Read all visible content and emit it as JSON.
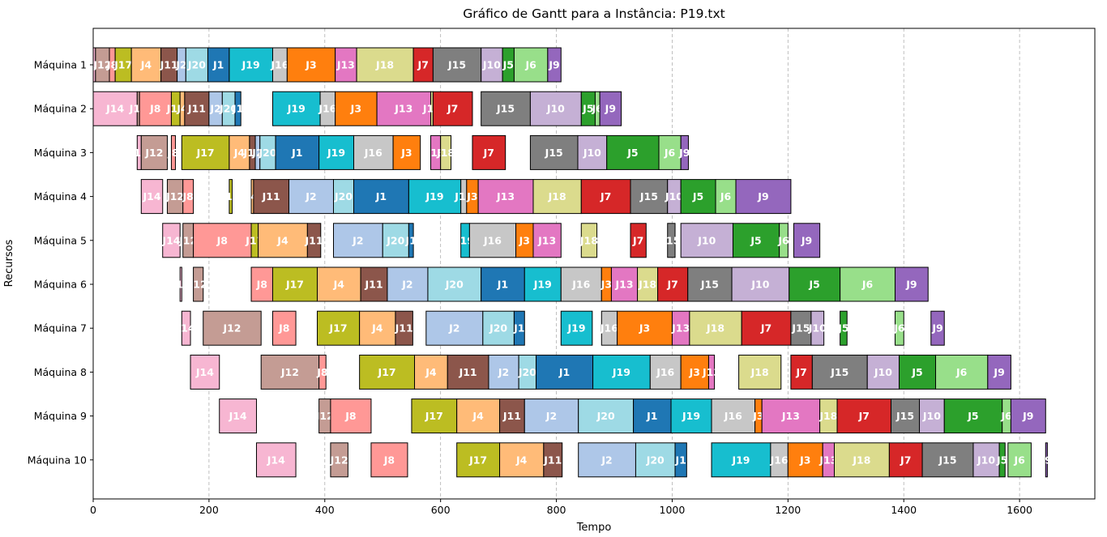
{
  "chart_data": {
    "type": "gantt",
    "title": "Gráfico de Gantt para a Instância: P19.txt",
    "xlabel": "Tempo",
    "ylabel": "Recursos",
    "xlim": [
      0,
      1730
    ],
    "xticks": [
      0,
      200,
      400,
      600,
      800,
      1000,
      1200,
      1400,
      1600
    ],
    "grid": "vertical-dashed",
    "machines": [
      "Máquina 1",
      "Máquina 2",
      "Máquina 3",
      "Máquina 4",
      "Máquina 5",
      "Máquina 6",
      "Máquina 7",
      "Máquina 8",
      "Máquina 9",
      "Máquina 10"
    ],
    "job_colors": {
      "J1": "#1f77b4",
      "J2": "#aec7e8",
      "J3": "#ff7f0e",
      "J4": "#ffbb78",
      "J5": "#2ca02c",
      "J6": "#98df8a",
      "J7": "#d62728",
      "J8": "#ff9896",
      "J9": "#9467bd",
      "J10": "#c5b0d5",
      "J11": "#8c564b",
      "J12": "#c49c94",
      "J13": "#e377c2",
      "J14": "#f7b6d2",
      "J15": "#7f7f7f",
      "J16": "#c7c7c7",
      "J17": "#bcbd22",
      "J18": "#dbdb8d",
      "J19": "#17becf",
      "J20": "#9edae5"
    },
    "tasks": [
      [
        "Máquina 1",
        "J14",
        0,
        4
      ],
      [
        "Máquina 1",
        "J12",
        4,
        28
      ],
      [
        "Máquina 1",
        "J8",
        28,
        38
      ],
      [
        "Máquina 1",
        "J17",
        38,
        66
      ],
      [
        "Máquina 1",
        "J4",
        66,
        117
      ],
      [
        "Máquina 1",
        "J11",
        117,
        145
      ],
      [
        "Máquina 1",
        "J2",
        145,
        160
      ],
      [
        "Máquina 1",
        "J20",
        160,
        198
      ],
      [
        "Máquina 1",
        "J1",
        198,
        235
      ],
      [
        "Máquina 1",
        "J19",
        235,
        310
      ],
      [
        "Máquina 1",
        "J16",
        310,
        335
      ],
      [
        "Máquina 1",
        "J3",
        335,
        418
      ],
      [
        "Máquina 1",
        "J13",
        418,
        455
      ],
      [
        "Máquina 1",
        "J18",
        455,
        553
      ],
      [
        "Máquina 1",
        "J7",
        553,
        587
      ],
      [
        "Máquina 1",
        "J15",
        587,
        670
      ],
      [
        "Máquina 1",
        "J10",
        670,
        707
      ],
      [
        "Máquina 1",
        "J5",
        707,
        727
      ],
      [
        "Máquina 1",
        "J6",
        727,
        785
      ],
      [
        "Máquina 1",
        "J9",
        785,
        808
      ],
      [
        "Máquina 2",
        "J14",
        0,
        76
      ],
      [
        "Máquina 2",
        "J12",
        76,
        80
      ],
      [
        "Máquina 2",
        "J8",
        80,
        135
      ],
      [
        "Máquina 2",
        "J17",
        135,
        150
      ],
      [
        "Máquina 2",
        "J4",
        150,
        158
      ],
      [
        "Máquina 2",
        "J11",
        158,
        200
      ],
      [
        "Máquina 2",
        "J2",
        200,
        223
      ],
      [
        "Máquina 2",
        "J20",
        223,
        245
      ],
      [
        "Máquina 2",
        "J1",
        245,
        255
      ],
      [
        "Máquina 2",
        "J19",
        310,
        392
      ],
      [
        "Máquina 2",
        "J16",
        392,
        418
      ],
      [
        "Máquina 2",
        "J3",
        418,
        490
      ],
      [
        "Máquina 2",
        "J13",
        490,
        583
      ],
      [
        "Máquina 2",
        "J18",
        583,
        587
      ],
      [
        "Máquina 2",
        "J7",
        587,
        655
      ],
      [
        "Máquina 2",
        "J15",
        670,
        755
      ],
      [
        "Máquina 2",
        "J10",
        755,
        843
      ],
      [
        "Máquina 2",
        "J5",
        843,
        867
      ],
      [
        "Máquina 2",
        "J6",
        867,
        875
      ],
      [
        "Máquina 2",
        "J9",
        875,
        912
      ],
      [
        "Máquina 3",
        "J14",
        76,
        83
      ],
      [
        "Máquina 3",
        "J12",
        83,
        128
      ],
      [
        "Máquina 3",
        "J8",
        135,
        142
      ],
      [
        "Máquina 3",
        "J17",
        153,
        235
      ],
      [
        "Máquina 3",
        "J4",
        235,
        270
      ],
      [
        "Máquina 3",
        "J11",
        270,
        280
      ],
      [
        "Máquina 3",
        "J2",
        280,
        288
      ],
      [
        "Máquina 3",
        "J20",
        288,
        315
      ],
      [
        "Máquina 3",
        "J1",
        315,
        390
      ],
      [
        "Máquina 3",
        "J19",
        390,
        450
      ],
      [
        "Máquina 3",
        "J16",
        450,
        518
      ],
      [
        "Máquina 3",
        "J3",
        518,
        565
      ],
      [
        "Máquina 3",
        "J13",
        583,
        600
      ],
      [
        "Máquina 3",
        "J18",
        600,
        618
      ],
      [
        "Máquina 3",
        "J7",
        655,
        712
      ],
      [
        "Máquina 3",
        "J15",
        755,
        837
      ],
      [
        "Máquina 3",
        "J10",
        837,
        887
      ],
      [
        "Máquina 3",
        "J5",
        887,
        977
      ],
      [
        "Máquina 3",
        "J6",
        977,
        1015
      ],
      [
        "Máquina 3",
        "J9",
        1015,
        1028
      ],
      [
        "Máquina 4",
        "J14",
        83,
        120
      ],
      [
        "Máquina 4",
        "J12",
        128,
        155
      ],
      [
        "Máquina 4",
        "J8",
        155,
        173
      ],
      [
        "Máquina 4",
        "J17",
        235,
        240
      ],
      [
        "Máquina 4",
        "J4",
        273,
        277
      ],
      [
        "Máquina 4",
        "J11",
        277,
        338
      ],
      [
        "Máquina 4",
        "J2",
        338,
        415
      ],
      [
        "Máquina 4",
        "J20",
        415,
        450
      ],
      [
        "Máquina 4",
        "J1",
        450,
        545
      ],
      [
        "Máquina 4",
        "J19",
        545,
        635
      ],
      [
        "Máquina 4",
        "J16",
        635,
        645
      ],
      [
        "Máquina 4",
        "J3",
        645,
        665
      ],
      [
        "Máquina 4",
        "J13",
        665,
        760
      ],
      [
        "Máquina 4",
        "J18",
        760,
        843
      ],
      [
        "Máquina 4",
        "J7",
        843,
        928
      ],
      [
        "Máquina 4",
        "J15",
        928,
        992
      ],
      [
        "Máquina 4",
        "J10",
        992,
        1015
      ],
      [
        "Máquina 4",
        "J5",
        1015,
        1075
      ],
      [
        "Máquina 4",
        "J6",
        1075,
        1110
      ],
      [
        "Máquina 4",
        "J9",
        1110,
        1205
      ],
      [
        "Máquina 5",
        "J14",
        120,
        150
      ],
      [
        "Máquina 5",
        "J12",
        155,
        173
      ],
      [
        "Máquina 5",
        "J8",
        173,
        273
      ],
      [
        "Máquina 5",
        "J17",
        273,
        285
      ],
      [
        "Máquina 5",
        "J4",
        285,
        370
      ],
      [
        "Máquina 5",
        "J11",
        370,
        393
      ],
      [
        "Máquina 5",
        "J2",
        415,
        500
      ],
      [
        "Máquina 5",
        "J20",
        500,
        545
      ],
      [
        "Máquina 5",
        "J1",
        545,
        553
      ],
      [
        "Máquina 5",
        "J19",
        635,
        650
      ],
      [
        "Máquina 5",
        "J16",
        650,
        730
      ],
      [
        "Máquina 5",
        "J3",
        730,
        760
      ],
      [
        "Máquina 5",
        "J13",
        760,
        808
      ],
      [
        "Máquina 5",
        "J18",
        843,
        870
      ],
      [
        "Máquina 5",
        "J7",
        928,
        955
      ],
      [
        "Máquina 5",
        "J15",
        992,
        1005
      ],
      [
        "Máquina 5",
        "J10",
        1015,
        1105
      ],
      [
        "Máquina 5",
        "J5",
        1105,
        1185
      ],
      [
        "Máquina 5",
        "J6",
        1185,
        1200
      ],
      [
        "Máquina 5",
        "J9",
        1210,
        1255
      ],
      [
        "Máquina 6",
        "J14",
        150,
        153
      ],
      [
        "Máquina 6",
        "J12",
        173,
        190
      ],
      [
        "Máquina 6",
        "J8",
        273,
        310
      ],
      [
        "Máquina 6",
        "J17",
        310,
        387
      ],
      [
        "Máquina 6",
        "J4",
        387,
        462
      ],
      [
        "Máquina 6",
        "J11",
        462,
        508
      ],
      [
        "Máquina 6",
        "J2",
        508,
        578
      ],
      [
        "Máquina 6",
        "J20",
        578,
        670
      ],
      [
        "Máquina 6",
        "J1",
        670,
        745
      ],
      [
        "Máquina 6",
        "J19",
        745,
        808
      ],
      [
        "Máquina 6",
        "J16",
        808,
        878
      ],
      [
        "Máquina 6",
        "J3",
        878,
        895
      ],
      [
        "Máquina 6",
        "J13",
        895,
        940
      ],
      [
        "Máquina 6",
        "J18",
        940,
        975
      ],
      [
        "Máquina 6",
        "J7",
        975,
        1027
      ],
      [
        "Máquina 6",
        "J15",
        1027,
        1103
      ],
      [
        "Máquina 6",
        "J10",
        1103,
        1202
      ],
      [
        "Máquina 6",
        "J5",
        1202,
        1290
      ],
      [
        "Máquina 6",
        "J6",
        1290,
        1385
      ],
      [
        "Máquina 6",
        "J9",
        1385,
        1442
      ],
      [
        "Máquina 7",
        "J14",
        153,
        168
      ],
      [
        "Máquina 7",
        "J12",
        190,
        290
      ],
      [
        "Máquina 7",
        "J8",
        310,
        350
      ],
      [
        "Máquina 7",
        "J17",
        387,
        460
      ],
      [
        "Máquina 7",
        "J4",
        460,
        522
      ],
      [
        "Máquina 7",
        "J11",
        522,
        552
      ],
      [
        "Máquina 7",
        "J2",
        575,
        673
      ],
      [
        "Máquina 7",
        "J20",
        673,
        727
      ],
      [
        "Máquina 7",
        "J1",
        727,
        745
      ],
      [
        "Máquina 7",
        "J19",
        808,
        862
      ],
      [
        "Máquina 7",
        "J16",
        878,
        905
      ],
      [
        "Máquina 7",
        "J3",
        905,
        1000
      ],
      [
        "Máquina 7",
        "J13",
        1000,
        1030
      ],
      [
        "Máquina 7",
        "J18",
        1030,
        1120
      ],
      [
        "Máquina 7",
        "J7",
        1120,
        1205
      ],
      [
        "Máquina 7",
        "J15",
        1205,
        1240
      ],
      [
        "Máquina 7",
        "J10",
        1240,
        1262
      ],
      [
        "Máquina 7",
        "J5",
        1290,
        1302
      ],
      [
        "Máquina 7",
        "J6",
        1385,
        1400
      ],
      [
        "Máquina 7",
        "J9",
        1447,
        1470
      ],
      [
        "Máquina 8",
        "J14",
        168,
        218
      ],
      [
        "Máquina 8",
        "J12",
        290,
        390
      ],
      [
        "Máquina 8",
        "J8",
        390,
        402
      ],
      [
        "Máquina 8",
        "J17",
        460,
        555
      ],
      [
        "Máquina 8",
        "J4",
        555,
        612
      ],
      [
        "Máquina 8",
        "J11",
        612,
        683
      ],
      [
        "Máquina 8",
        "J2",
        683,
        735
      ],
      [
        "Máquina 8",
        "J20",
        735,
        765
      ],
      [
        "Máquina 8",
        "J1",
        765,
        863
      ],
      [
        "Máquina 8",
        "J19",
        863,
        962
      ],
      [
        "Máquina 8",
        "J16",
        962,
        1015
      ],
      [
        "Máquina 8",
        "J3",
        1015,
        1063
      ],
      [
        "Máquina 8",
        "J13",
        1063,
        1073
      ],
      [
        "Máquina 8",
        "J18",
        1115,
        1188
      ],
      [
        "Máquina 8",
        "J7",
        1205,
        1242
      ],
      [
        "Máquina 8",
        "J15",
        1242,
        1337
      ],
      [
        "Máquina 8",
        "J10",
        1337,
        1392
      ],
      [
        "Máquina 8",
        "J5",
        1392,
        1455
      ],
      [
        "Máquina 8",
        "J6",
        1455,
        1545
      ],
      [
        "Máquina 8",
        "J9",
        1545,
        1585
      ],
      [
        "Máquina 9",
        "J14",
        218,
        282
      ],
      [
        "Máquina 9",
        "J12",
        390,
        410
      ],
      [
        "Máquina 9",
        "J8",
        410,
        480
      ],
      [
        "Máquina 9",
        "J17",
        550,
        628
      ],
      [
        "Máquina 9",
        "J4",
        628,
        702
      ],
      [
        "Máquina 9",
        "J11",
        702,
        745
      ],
      [
        "Máquina 9",
        "J2",
        745,
        838
      ],
      [
        "Máquina 9",
        "J20",
        838,
        933
      ],
      [
        "Máquina 9",
        "J1",
        933,
        998
      ],
      [
        "Máquina 9",
        "J19",
        998,
        1068
      ],
      [
        "Máquina 9",
        "J16",
        1068,
        1143
      ],
      [
        "Máquina 9",
        "J3",
        1143,
        1155
      ],
      [
        "Máquina 9",
        "J13",
        1155,
        1255
      ],
      [
        "Máquina 9",
        "J18",
        1255,
        1285
      ],
      [
        "Máquina 9",
        "J7",
        1285,
        1378
      ],
      [
        "Máquina 9",
        "J15",
        1378,
        1427
      ],
      [
        "Máquina 9",
        "J10",
        1427,
        1470
      ],
      [
        "Máquina 9",
        "J5",
        1470,
        1570
      ],
      [
        "Máquina 9",
        "J6",
        1570,
        1585
      ],
      [
        "Máquina 9",
        "J9",
        1585,
        1645
      ],
      [
        "Máquina 10",
        "J14",
        282,
        350
      ],
      [
        "Máquina 10",
        "J12",
        410,
        440
      ],
      [
        "Máquina 10",
        "J8",
        480,
        543
      ],
      [
        "Máquina 10",
        "J17",
        628,
        702
      ],
      [
        "Máquina 10",
        "J4",
        702,
        778
      ],
      [
        "Máquina 10",
        "J11",
        778,
        810
      ],
      [
        "Máquina 10",
        "J2",
        838,
        937
      ],
      [
        "Máquina 10",
        "J20",
        937,
        1005
      ],
      [
        "Máquina 10",
        "J1",
        1005,
        1025
      ],
      [
        "Máquina 10",
        "J19",
        1068,
        1170
      ],
      [
        "Máquina 10",
        "J16",
        1170,
        1200
      ],
      [
        "Máquina 10",
        "J3",
        1200,
        1260
      ],
      [
        "Máquina 10",
        "J13",
        1260,
        1280
      ],
      [
        "Máquina 10",
        "J18",
        1280,
        1375
      ],
      [
        "Máquina 10",
        "J7",
        1375,
        1432
      ],
      [
        "Máquina 10",
        "J15",
        1432,
        1520
      ],
      [
        "Máquina 10",
        "J10",
        1520,
        1565
      ],
      [
        "Máquina 10",
        "J5",
        1565,
        1575
      ],
      [
        "Máquina 10",
        "J6",
        1580,
        1620
      ],
      [
        "Máquina 10",
        "J9",
        1645,
        1648
      ]
    ]
  }
}
